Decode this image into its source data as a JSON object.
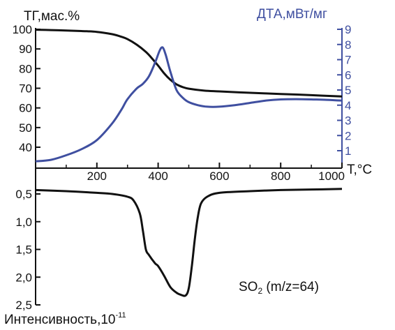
{
  "colors": {
    "tg": "#111111",
    "dta": "#3f4fa0",
    "ms": "#111111",
    "axis": "#111111",
    "axis_right": "#3f4fa0"
  },
  "chart_data": [
    {
      "type": "line",
      "title": "",
      "xlabel": "T,°C",
      "xlim": [
        0,
        1000
      ],
      "x_ticks": [
        200,
        400,
        600,
        800,
        1000
      ],
      "ylabel_left": "ТГ,мас.%",
      "ylim_left": [
        30,
        100
      ],
      "y_ticks_left": [
        40,
        50,
        60,
        70,
        80,
        90,
        100
      ],
      "ylabel_right": "ДТА,мВт/мг",
      "ylim_right": [
        0,
        9
      ],
      "y_ticks_right": [
        1,
        2,
        3,
        4,
        5,
        6,
        7,
        8,
        9
      ],
      "grid": false,
      "series": [
        {
          "axis": "left",
          "color": "#111111",
          "x": [
            0,
            50,
            100,
            150,
            200,
            250,
            280,
            300,
            330,
            360,
            380,
            400,
            420,
            440,
            460,
            480,
            500,
            550,
            600,
            700,
            800,
            900,
            1000
          ],
          "y": [
            99.8,
            99.6,
            99.4,
            99.1,
            98.7,
            97.5,
            96.2,
            95,
            92.2,
            88.5,
            85.2,
            81.5,
            77.5,
            74.3,
            72,
            70.6,
            69.8,
            68.8,
            68.4,
            67.7,
            67.1,
            66.5,
            65.8
          ]
        },
        {
          "axis": "right",
          "color": "#3f4fa0",
          "x": [
            0,
            50,
            100,
            150,
            200,
            250,
            280,
            300,
            330,
            350,
            370,
            390,
            405,
            415,
            425,
            440,
            460,
            480,
            500,
            530,
            560,
            600,
            650,
            700,
            750,
            800,
            850,
            900,
            950,
            1000
          ],
          "y": [
            0.3,
            0.4,
            0.7,
            1.1,
            1.7,
            2.8,
            3.7,
            4.4,
            5.1,
            5.4,
            5.9,
            6.8,
            7.6,
            7.8,
            7.3,
            6.2,
            5.0,
            4.5,
            4.2,
            4.0,
            3.9,
            3.9,
            4.0,
            4.15,
            4.3,
            4.38,
            4.4,
            4.38,
            4.35,
            4.3
          ]
        }
      ]
    },
    {
      "type": "line",
      "title": "",
      "annotation": "SO2 (m/z=64)",
      "ylabel": "Интенсивность,10-11",
      "ylim": [
        0.3,
        2.5
      ],
      "y_inverted": true,
      "y_ticks": [
        "0,5",
        "1,0",
        "1,5",
        "2,0",
        "2,5"
      ],
      "y_tick_values": [
        0.5,
        1.0,
        1.5,
        2.0,
        2.5
      ],
      "xlim": [
        0,
        1000
      ],
      "grid": false,
      "series": [
        {
          "color": "#111111",
          "x": [
            0,
            100,
            200,
            250,
            300,
            320,
            340,
            350,
            360,
            370,
            390,
            400,
            420,
            440,
            460,
            475,
            490,
            500,
            510,
            520,
            530,
            540,
            560,
            600,
            700,
            800,
            900,
            1000
          ],
          "y": [
            0.43,
            0.45,
            0.48,
            0.5,
            0.55,
            0.62,
            0.85,
            1.15,
            1.5,
            1.6,
            1.75,
            1.8,
            1.98,
            2.18,
            2.28,
            2.32,
            2.33,
            2.2,
            1.8,
            1.3,
            0.9,
            0.67,
            0.55,
            0.48,
            0.45,
            0.43,
            0.42,
            0.41
          ]
        }
      ]
    }
  ],
  "labels": {
    "tg_axis_prefix": "ТГ",
    "tg_axis_suffix": ",мас.%",
    "dta_axis": "ДТА,мВт/мг",
    "x_axis": "T,°C",
    "ms_axis_main": "Интенсивность,10",
    "ms_axis_exp": "-11",
    "annotation_main": "SO",
    "annotation_sub": "2",
    "annotation_rest": " (m/z=64)"
  }
}
